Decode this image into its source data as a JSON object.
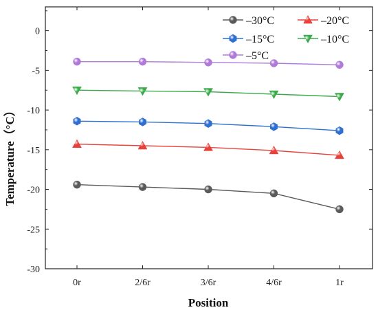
{
  "chart_data": {
    "type": "line",
    "title": "",
    "xlabel": "Position",
    "ylabel": "Temperature（°C）",
    "categories": [
      "0r",
      "2/6r",
      "3/6r",
      "4/6r",
      "1r"
    ],
    "ylim": [
      -30,
      3
    ],
    "yticks": [
      "-30",
      "-25",
      "-20",
      "-15",
      "-10",
      "-5",
      "0"
    ],
    "grid": false,
    "legend_position": "top-right",
    "series": [
      {
        "name": "–30°C",
        "color": "#5a5a5a",
        "marker": "circle-3d",
        "values": [
          -19.4,
          -19.7,
          -20.0,
          -20.5,
          -22.5
        ]
      },
      {
        "name": "–20°C",
        "color": "#e8413c",
        "marker": "triangle-up",
        "values": [
          -14.3,
          -14.5,
          -14.7,
          -15.1,
          -15.7
        ]
      },
      {
        "name": "–15°C",
        "color": "#2e6fd0",
        "marker": "hexagon",
        "values": [
          -11.4,
          -11.5,
          -11.7,
          -12.1,
          -12.6
        ]
      },
      {
        "name": "–10°C",
        "color": "#3caa4c",
        "marker": "triangle-down",
        "values": [
          -7.5,
          -7.6,
          -7.7,
          -8.0,
          -8.3
        ]
      },
      {
        "name": "–5°C",
        "color": "#b07ad9",
        "marker": "circle",
        "values": [
          -3.9,
          -3.9,
          -4.0,
          -4.1,
          -4.3
        ]
      }
    ]
  }
}
